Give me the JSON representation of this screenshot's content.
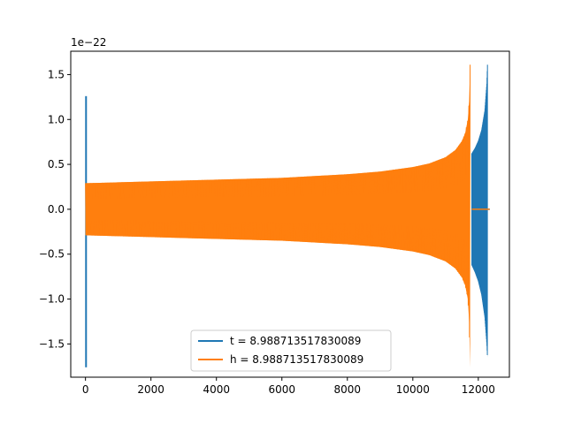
{
  "chart_data": {
    "type": "line",
    "title": "",
    "xlabel": "",
    "ylabel": "",
    "offset_label": "1e−22",
    "xlim": [
      -450,
      12950
    ],
    "ylim": [
      -1.87,
      1.76
    ],
    "x_ticks": [
      0,
      2000,
      4000,
      6000,
      8000,
      10000,
      12000
    ],
    "x_tick_labels": [
      "0",
      "2000",
      "4000",
      "6000",
      "8000",
      "10000",
      "12000"
    ],
    "y_ticks": [
      -1.5,
      -1.0,
      -0.5,
      0.0,
      0.5,
      1.0,
      1.5
    ],
    "y_tick_labels": [
      "−1.5",
      "−1.0",
      "−0.5",
      "0.0",
      "0.5",
      "1.0",
      "1.5"
    ],
    "grid": false,
    "legend_position": "lower-center",
    "series": [
      {
        "name": "t = 8.988713517830089",
        "color": "#1f77b4",
        "description_of_shape": "oscillating signal; burst near x=0 and dense chirp from 11800 to 12280",
        "burst_start": {
          "x_start": -10,
          "x_end": 20,
          "ymin": -1.76,
          "ymax": 1.26
        },
        "envelope_upper": [
          [
            11800,
            0.62
          ],
          [
            11900,
            0.68
          ],
          [
            12000,
            0.76
          ],
          [
            12100,
            0.88
          ],
          [
            12200,
            1.1
          ],
          [
            12260,
            1.4
          ],
          [
            12280,
            1.61
          ]
        ],
        "envelope_lower": [
          [
            11800,
            -0.62
          ],
          [
            11900,
            -0.7
          ],
          [
            12000,
            -0.8
          ],
          [
            12100,
            -0.95
          ],
          [
            12200,
            -1.2
          ],
          [
            12260,
            -1.5
          ],
          [
            12280,
            -1.65
          ]
        ],
        "tail": {
          "x_start": 11800,
          "x_end": 12350,
          "y": 0.0
        }
      },
      {
        "name": "h = 8.988713517830089",
        "color": "#ff7f0e",
        "description_of_shape": "chirp waveform whose amplitude grows from ~0.29 to peak ~1.61 near x=11750, then flat zero",
        "envelope_upper": [
          [
            0,
            0.29
          ],
          [
            1000,
            0.3
          ],
          [
            2000,
            0.31
          ],
          [
            3000,
            0.32
          ],
          [
            4000,
            0.33
          ],
          [
            5000,
            0.34
          ],
          [
            6000,
            0.35
          ],
          [
            7000,
            0.37
          ],
          [
            8000,
            0.39
          ],
          [
            9000,
            0.42
          ],
          [
            10000,
            0.47
          ],
          [
            10500,
            0.51
          ],
          [
            11000,
            0.58
          ],
          [
            11300,
            0.66
          ],
          [
            11500,
            0.76
          ],
          [
            11600,
            0.85
          ],
          [
            11680,
            1.0
          ],
          [
            11720,
            1.2
          ],
          [
            11750,
            1.61
          ]
        ],
        "envelope_lower": [
          [
            0,
            -0.29
          ],
          [
            1000,
            -0.3
          ],
          [
            2000,
            -0.31
          ],
          [
            3000,
            -0.32
          ],
          [
            4000,
            -0.33
          ],
          [
            5000,
            -0.34
          ],
          [
            6000,
            -0.35
          ],
          [
            7000,
            -0.37
          ],
          [
            8000,
            -0.39
          ],
          [
            9000,
            -0.42
          ],
          [
            10000,
            -0.47
          ],
          [
            10500,
            -0.51
          ],
          [
            11000,
            -0.58
          ],
          [
            11300,
            -0.66
          ],
          [
            11500,
            -0.76
          ],
          [
            11600,
            -0.85
          ],
          [
            11680,
            -1.0
          ],
          [
            11720,
            -1.25
          ],
          [
            11750,
            -1.76
          ]
        ],
        "zero_tail": {
          "x_start": 11800,
          "x_end": 12350,
          "y": 0.0
        }
      }
    ]
  }
}
